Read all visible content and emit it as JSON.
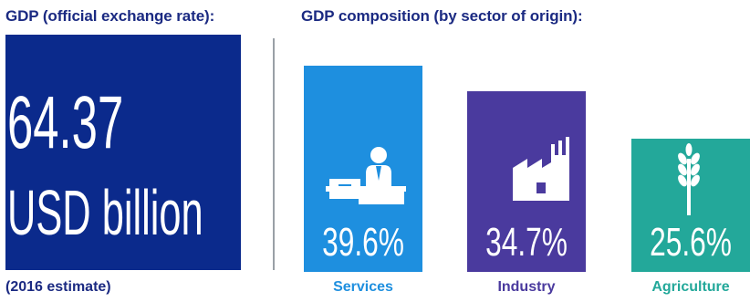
{
  "gdp": {
    "heading": "GDP (official exchange rate):",
    "value": "64.37",
    "unit": "USD billion",
    "note": "(2016 estimate)"
  },
  "composition": {
    "heading": "GDP composition (by sector of origin):"
  },
  "colors": {
    "text_dark": "#1b2a82",
    "gdp_box": "#0b2a8c",
    "services": "#1e8fdf",
    "industry": "#4a3a9e",
    "agriculture": "#23a89a"
  },
  "chart_data": {
    "type": "bar",
    "categories": [
      "Services",
      "Industry",
      "Agriculture"
    ],
    "values": [
      39.6,
      34.7,
      25.6
    ],
    "value_labels": [
      "39.6%",
      "34.7%",
      "25.6%"
    ],
    "icons": [
      "office-worker-icon",
      "factory-icon",
      "wheat-icon"
    ],
    "title": "",
    "xlabel": "",
    "ylabel": "",
    "ylim": [
      0,
      39.6
    ]
  }
}
